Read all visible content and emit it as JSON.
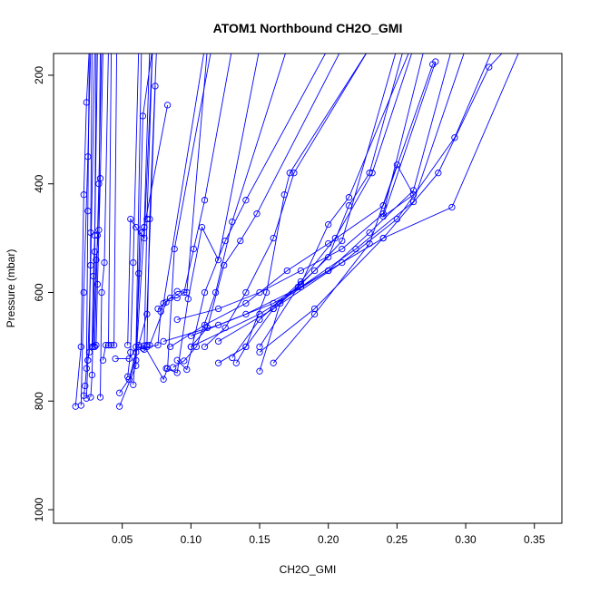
{
  "chart_data": {
    "type": "scatter",
    "title": "ATOM1 Northbound CH2O_GMI",
    "xlabel": "CH2O_GMI",
    "ylabel": "Pressure (mbar)",
    "xlim": [
      0.0,
      0.37
    ],
    "ylim": [
      1025,
      160
    ],
    "y_reversed": true,
    "x_ticks": [
      0.05,
      0.1,
      0.15,
      0.2,
      0.25,
      0.3,
      0.35
    ],
    "x_tick_labels": [
      "0.05",
      "0.10",
      "0.15",
      "0.20",
      "0.25",
      "0.30",
      "0.35"
    ],
    "y_ticks": [
      200,
      400,
      600,
      800,
      1000
    ],
    "y_tick_labels": [
      "200",
      "400",
      "600",
      "800",
      "1000"
    ],
    "color": "#0000ff",
    "grid": false,
    "series": [
      {
        "x": [
          0.016,
          0.02,
          0.022,
          0.024,
          0.026
        ],
        "y": [
          810,
          700,
          420,
          250,
          150
        ]
      },
      {
        "x": [
          0.02,
          0.022,
          0.025,
          0.027
        ],
        "y": [
          808,
          600,
          350,
          150
        ]
      },
      {
        "x": [
          0.022,
          0.023,
          0.024,
          0.025,
          0.026
        ],
        "y": [
          790,
          772,
          740,
          450,
          150
        ]
      },
      {
        "x": [
          0.024,
          0.025,
          0.027,
          0.03
        ],
        "y": [
          795,
          725,
          550,
          150
        ]
      },
      {
        "x": [
          0.025,
          0.026,
          0.027,
          0.028
        ],
        "y": [
          725,
          710,
          490,
          150
        ]
      },
      {
        "x": [
          0.027,
          0.028,
          0.03,
          0.031
        ],
        "y": [
          793,
          752,
          525,
          150
        ]
      },
      {
        "x": [
          0.028,
          0.029,
          0.03,
          0.032
        ],
        "y": [
          700,
          570,
          495,
          150
        ]
      },
      {
        "x": [
          0.029,
          0.031,
          0.033,
          0.034
        ],
        "y": [
          700,
          540,
          485,
          150
        ]
      },
      {
        "x": [
          0.03,
          0.032,
          0.033,
          0.035
        ],
        "y": [
          700,
          495,
          400,
          150
        ]
      },
      {
        "x": [
          0.031,
          0.032,
          0.034,
          0.036
        ],
        "y": [
          697,
          585,
          390,
          150
        ]
      },
      {
        "x": [
          0.034,
          0.035,
          0.037,
          0.04
        ],
        "y": [
          793,
          600,
          545,
          150
        ]
      },
      {
        "x": [
          0.036,
          0.038,
          0.04,
          0.042
        ],
        "y": [
          725,
          697,
          697,
          150
        ]
      },
      {
        "x": [
          0.04,
          0.042,
          0.044,
          0.046
        ],
        "y": [
          697,
          697,
          697,
          150
        ]
      },
      {
        "x": [
          0.045,
          0.055,
          0.062,
          0.068,
          0.074
        ],
        "y": [
          722,
          722,
          697,
          640,
          220
        ]
      },
      {
        "x": [
          0.048,
          0.055,
          0.06,
          0.064
        ],
        "y": [
          785,
          760,
          710,
          150
        ]
      },
      {
        "x": [
          0.048,
          0.06,
          0.062,
          0.065,
          0.072
        ],
        "y": [
          810,
          735,
          565,
          275,
          150
        ]
      },
      {
        "x": [
          0.054,
          0.056,
          0.058,
          0.062
        ],
        "y": [
          755,
          710,
          545,
          150
        ]
      },
      {
        "x": [
          0.055,
          0.06,
          0.066,
          0.083
        ],
        "y": [
          760,
          725,
          480,
          255
        ]
      },
      {
        "x": [
          0.054,
          0.056,
          0.06,
          0.066,
          0.072
        ],
        "y": [
          697,
          465,
          480,
          500,
          150
        ]
      },
      {
        "x": [
          0.058,
          0.06,
          0.064,
          0.066,
          0.07
        ],
        "y": [
          770,
          700,
          490,
          480,
          150
        ]
      },
      {
        "x": [
          0.062,
          0.066,
          0.068,
          0.072
        ],
        "y": [
          700,
          705,
          465,
          150
        ]
      },
      {
        "x": [
          0.065,
          0.068,
          0.07,
          0.075
        ],
        "y": [
          703,
          697,
          465,
          150
        ]
      },
      {
        "x": [
          0.066,
          0.08,
          0.083,
          0.088,
          0.115
        ],
        "y": [
          698,
          760,
          740,
          520,
          150
        ]
      },
      {
        "x": [
          0.068,
          0.076,
          0.078,
          0.08,
          0.11
        ],
        "y": [
          700,
          697,
          635,
          620,
          150
        ]
      },
      {
        "x": [
          0.07,
          0.082,
          0.09,
          0.097,
          0.112
        ],
        "y": [
          697,
          618,
          598,
          600,
          150
        ]
      },
      {
        "x": [
          0.076,
          0.085,
          0.09,
          0.095,
          0.102,
          0.11,
          0.13
        ],
        "y": [
          630,
          610,
          610,
          600,
          520,
          430,
          150
        ]
      },
      {
        "x": [
          0.082,
          0.09,
          0.098,
          0.108,
          0.12,
          0.15
        ],
        "y": [
          740,
          748,
          612,
          480,
          540,
          150
        ]
      },
      {
        "x": [
          0.087,
          0.095,
          0.104,
          0.118,
          0.13,
          0.17
        ],
        "y": [
          738,
          726,
          700,
          600,
          470,
          150
        ]
      },
      {
        "x": [
          0.09,
          0.097,
          0.11,
          0.125,
          0.14,
          0.2
        ],
        "y": [
          725,
          742,
          600,
          505,
          430,
          150
        ]
      },
      {
        "x": [
          0.1,
          0.112,
          0.124,
          0.136,
          0.148,
          0.21
        ],
        "y": [
          700,
          665,
          550,
          505,
          455,
          150
        ]
      },
      {
        "x": [
          0.11,
          0.125,
          0.14,
          0.16,
          0.175,
          0.23
        ],
        "y": [
          700,
          665,
          600,
          500,
          380,
          150
        ]
      },
      {
        "x": [
          0.133,
          0.14,
          0.155,
          0.168,
          0.172,
          0.23
        ],
        "y": [
          730,
          700,
          600,
          420,
          380,
          150
        ]
      },
      {
        "x": [
          0.15,
          0.165,
          0.18,
          0.2,
          0.215,
          0.26
        ],
        "y": [
          745,
          620,
          585,
          475,
          425,
          150
        ]
      },
      {
        "x": [
          0.12,
          0.14,
          0.16,
          0.19,
          0.21,
          0.25
        ],
        "y": [
          730,
          700,
          630,
          560,
          505,
          150
        ]
      },
      {
        "x": [
          0.09,
          0.12,
          0.15,
          0.18,
          0.21,
          0.24,
          0.27
        ],
        "y": [
          650,
          630,
          600,
          560,
          520,
          455,
          150
        ]
      },
      {
        "x": [
          0.085,
          0.11,
          0.14,
          0.17,
          0.2,
          0.24,
          0.276
        ],
        "y": [
          700,
          660,
          620,
          560,
          510,
          440,
          180
        ]
      },
      {
        "x": [
          0.08,
          0.12,
          0.16,
          0.2,
          0.23,
          0.262,
          0.29
        ],
        "y": [
          690,
          660,
          620,
          560,
          490,
          412,
          150
        ]
      },
      {
        "x": [
          0.1,
          0.14,
          0.18,
          0.22,
          0.262,
          0.3
        ],
        "y": [
          680,
          640,
          590,
          520,
          433,
          150
        ]
      },
      {
        "x": [
          0.1,
          0.15,
          0.2,
          0.24,
          0.29,
          0.34
        ],
        "y": [
          700,
          640,
          560,
          500,
          443,
          150
        ]
      },
      {
        "x": [
          0.12,
          0.16,
          0.21,
          0.25,
          0.292,
          0.32
        ],
        "y": [
          690,
          630,
          545,
          465,
          315,
          150
        ]
      },
      {
        "x": [
          0.15,
          0.19,
          0.24,
          0.28,
          0.317,
          0.33
        ],
        "y": [
          710,
          630,
          500,
          380,
          185,
          150
        ]
      },
      {
        "x": [
          0.16,
          0.19,
          0.23,
          0.25,
          0.262,
          0.24,
          0.278
        ],
        "y": [
          730,
          640,
          510,
          365,
          420,
          460,
          175
        ]
      },
      {
        "x": [
          0.15,
          0.178,
          0.2,
          0.215,
          0.23,
          0.255
        ],
        "y": [
          700,
          590,
          535,
          440,
          380,
          150
        ]
      },
      {
        "x": [
          0.13,
          0.15,
          0.18,
          0.205,
          0.232,
          0.262
        ],
        "y": [
          720,
          650,
          580,
          500,
          380,
          150
        ]
      }
    ]
  }
}
